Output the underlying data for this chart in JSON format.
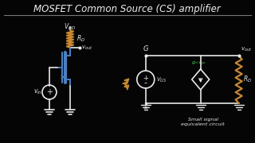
{
  "bg_color": "#050505",
  "title": "MOSFET Common Source (CS) amplifier",
  "title_color": "#f0f0f0",
  "title_fontsize": 8.5,
  "wire_color": "#e8e8e8",
  "mosfet_color": "#4a7fc0",
  "resistor_color": "#c88830",
  "arrow_color": "#c88830",
  "gm_color": "#50cc50",
  "small_text": "Small signal\nequivalent circuit",
  "small_text_color": "#e8e8e8"
}
